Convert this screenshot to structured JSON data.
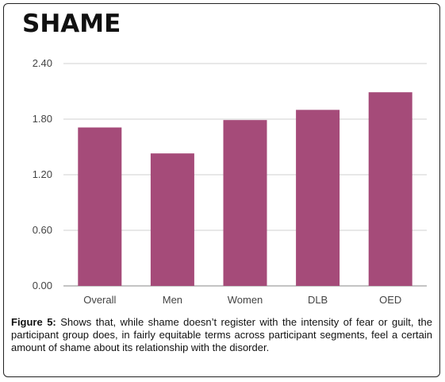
{
  "chart_data": {
    "type": "bar",
    "title": "SHAME",
    "categories": [
      "Overall",
      "Men",
      "Women",
      "DLB",
      "OED"
    ],
    "values": [
      1.71,
      1.43,
      1.79,
      1.9,
      2.09
    ],
    "yticks": [
      "0.00",
      "0.60",
      "1.20",
      "1.80",
      "2.40"
    ],
    "ylim": [
      0,
      2.4
    ],
    "grid": true,
    "bar_color": "#a54b79",
    "grid_color": "#d0d0d0"
  },
  "caption": {
    "label": "Figure 5:",
    "text": " Shows that, while shame doesn’t register with the intensity of fear or guilt, the participant group does, in fairly equitable terms across participant segments, feel a certain amount of shame about its relationship with the disorder."
  }
}
